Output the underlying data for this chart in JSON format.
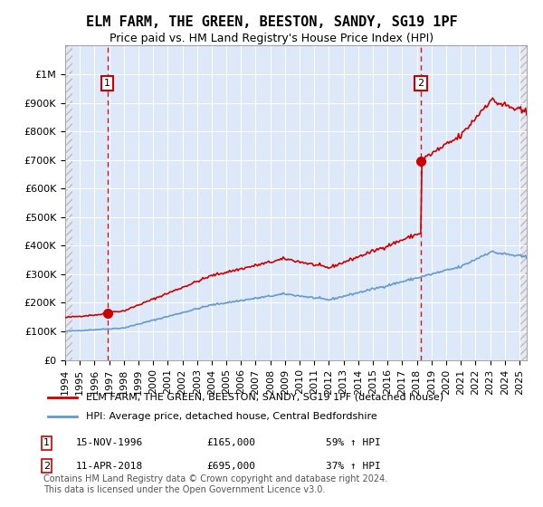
{
  "title": "ELM FARM, THE GREEN, BEESTON, SANDY, SG19 1PF",
  "subtitle": "Price paid vs. HM Land Registry's House Price Index (HPI)",
  "legend_line1": "ELM FARM, THE GREEN, BEESTON, SANDY, SG19 1PF (detached house)",
  "legend_line2": "HPI: Average price, detached house, Central Bedfordshire",
  "annotation1_date": "15-NOV-1996",
  "annotation1_price": "£165,000",
  "annotation1_hpi": "59% ↑ HPI",
  "annotation2_date": "11-APR-2018",
  "annotation2_price": "£695,000",
  "annotation2_hpi": "37% ↑ HPI",
  "footer": "Contains HM Land Registry data © Crown copyright and database right 2024.\nThis data is licensed under the Open Government Licence v3.0.",
  "price_line_color": "#cc0000",
  "hpi_line_color": "#6699cc",
  "vline_color": "#cc0000",
  "background_hatch_color": "#e8e8f0",
  "plot_bg_color": "#dde8f8",
  "ylim": [
    0,
    1100000
  ],
  "xlim_start": 1994.0,
  "xlim_end": 2025.5,
  "sale1_x": 1996.88,
  "sale1_y": 165000,
  "sale2_x": 2018.28,
  "sale2_y": 695000,
  "title_fontsize": 11,
  "subtitle_fontsize": 9,
  "tick_fontsize": 8,
  "legend_fontsize": 8,
  "footer_fontsize": 7
}
